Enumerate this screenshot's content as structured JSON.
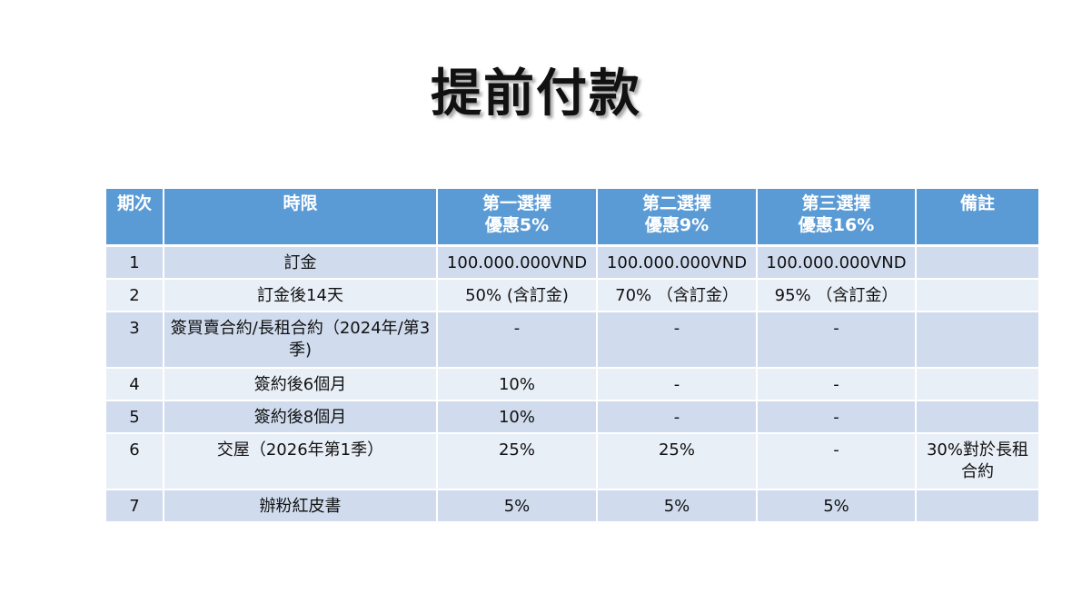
{
  "slide": {
    "title": "提前付款"
  },
  "table": {
    "headers": {
      "period": "期次",
      "timeline": "時限",
      "option1_line1": "第一選擇",
      "option1_line2": "優惠5%",
      "option2_line1": "第二選擇",
      "option2_line2": "優惠9%",
      "option3_line1": "第三選擇",
      "option3_line2": "優惠16%",
      "remarks": "備註"
    },
    "rows": [
      {
        "period": "1",
        "timeline": "訂金",
        "option1": "100.000.000VND",
        "option2": "100.000.000VND",
        "option3": "100.000.000VND",
        "remarks": ""
      },
      {
        "period": "2",
        "timeline": "訂金後14天",
        "option1": "50% (含訂金)",
        "option2": "70% （含訂金）",
        "option3": "95% （含訂金）",
        "remarks": ""
      },
      {
        "period": "3",
        "timeline": "簽買賣合約/長租合約（2024年/第3季)",
        "option1": "-",
        "option2": "-",
        "option3": "-",
        "remarks": ""
      },
      {
        "period": "4",
        "timeline": "簽約後6個月",
        "option1": "10%",
        "option2": "-",
        "option3": "-",
        "remarks": ""
      },
      {
        "period": "5",
        "timeline": "簽約後8個月",
        "option1": "10%",
        "option2": "-",
        "option3": "-",
        "remarks": ""
      },
      {
        "period": "6",
        "timeline": "交屋（2026年第1季）",
        "option1": "25%",
        "option2": "25%",
        "option3": "-",
        "remarks": "30%對於長租合約"
      },
      {
        "period": "7",
        "timeline": "辦粉紅皮書",
        "option1": "5%",
        "option2": "5%",
        "option3": "5%",
        "remarks": ""
      }
    ]
  }
}
